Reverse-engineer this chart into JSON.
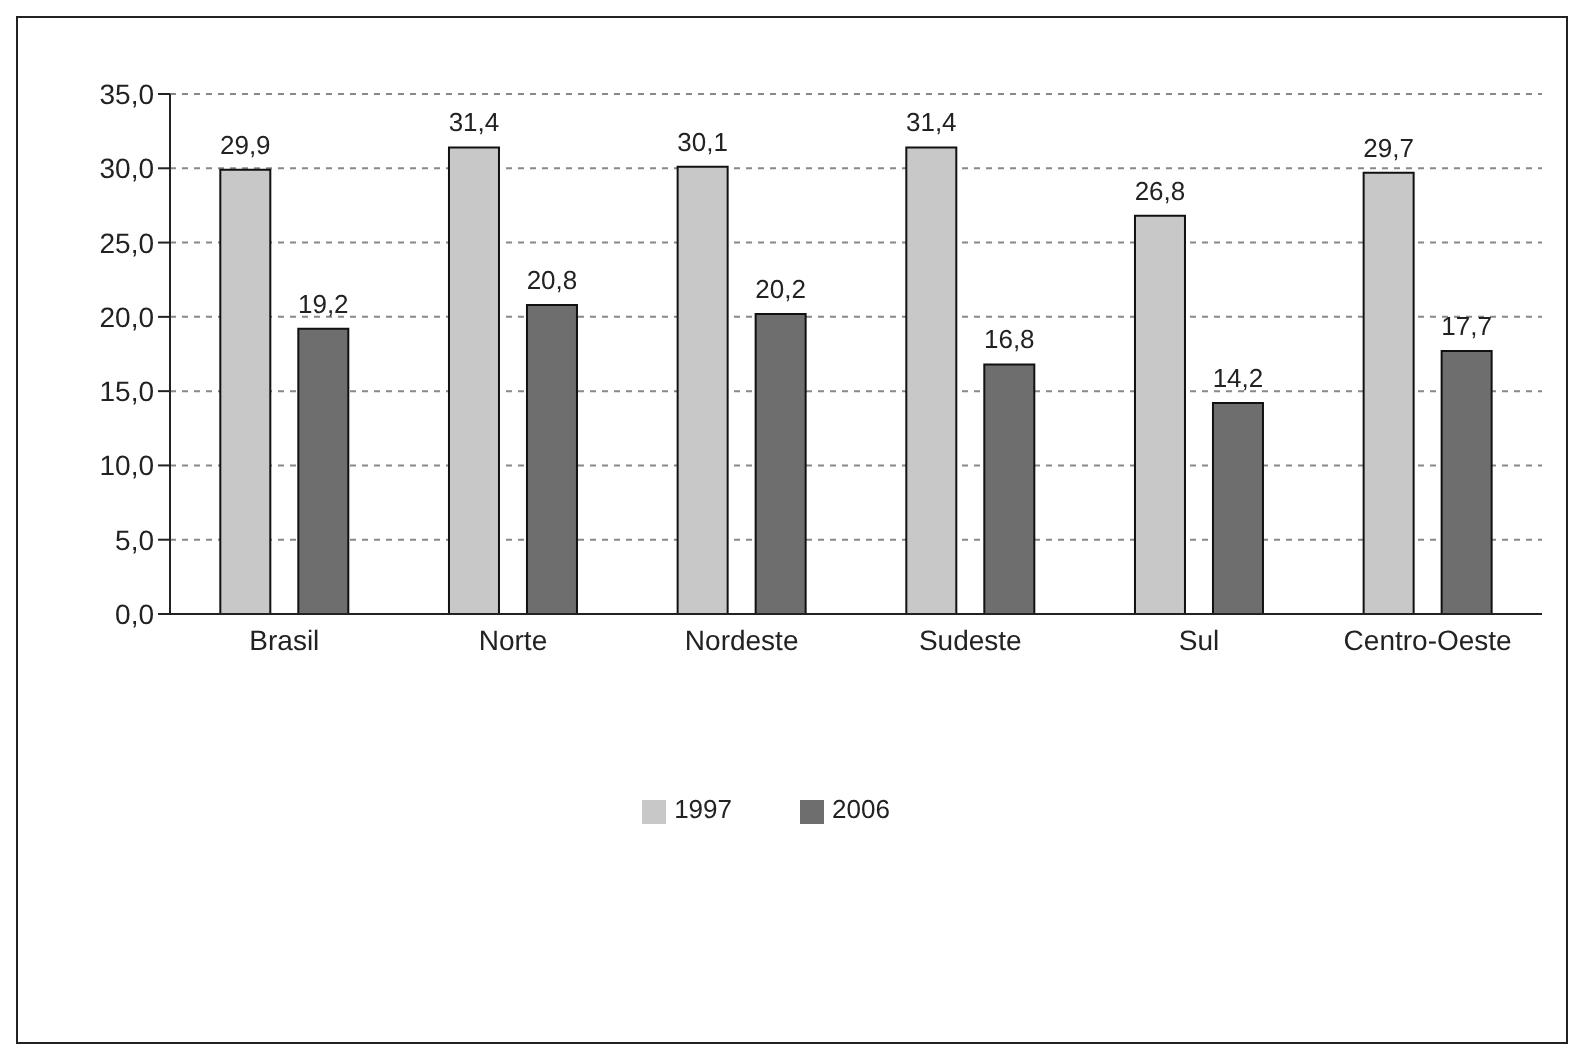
{
  "chart_data": {
    "type": "bar",
    "categories": [
      "Brasil",
      "Norte",
      "Nordeste",
      "Sudeste",
      "Sul",
      "Centro-Oeste"
    ],
    "series": [
      {
        "name": "1997",
        "color": "#c8c8c8",
        "values": [
          29.9,
          31.4,
          30.1,
          31.4,
          26.8,
          29.7
        ],
        "value_labels": [
          "29,9",
          "31,4",
          "30,1",
          "31,4",
          "26,8",
          "29,7"
        ]
      },
      {
        "name": "2006",
        "color": "#6e6e6e",
        "values": [
          19.2,
          20.8,
          20.2,
          16.8,
          14.2,
          17.7
        ],
        "value_labels": [
          "19,2",
          "20,8",
          "20,2",
          "16,8",
          "14,2",
          "17,7"
        ]
      }
    ],
    "ylim": [
      0,
      35
    ],
    "yticks": [
      {
        "value": 0,
        "label": "0,0"
      },
      {
        "value": 5,
        "label": "5,0"
      },
      {
        "value": 10,
        "label": "10,0"
      },
      {
        "value": 15,
        "label": "15,0"
      },
      {
        "value": 20,
        "label": "20,0"
      },
      {
        "value": 25,
        "label": "25,0"
      },
      {
        "value": 30,
        "label": "30,0"
      },
      {
        "value": 35,
        "label": "35,0"
      }
    ],
    "grid": "y",
    "legend": "bottom"
  }
}
